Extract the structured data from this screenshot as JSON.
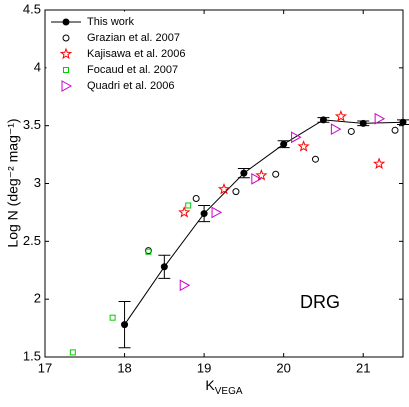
{
  "chart_data": {
    "type": "scatter",
    "xlabel": "K",
    "xlabel_sub": "VEGA",
    "ylabel": "Log N (deg⁻² mag⁻¹)",
    "annotation": "DRG",
    "xlim": [
      17,
      21.5
    ],
    "ylim": [
      1.5,
      4.5
    ],
    "xticks": [
      17,
      18,
      19,
      20,
      21
    ],
    "yticks": [
      1.5,
      2,
      2.5,
      3,
      3.5,
      4,
      4.5
    ],
    "legend": "upper left",
    "series": [
      {
        "name": "This work",
        "color": "#000000",
        "marker": "dot",
        "line": true,
        "x": [
          18,
          18.5,
          19,
          19.5,
          20,
          20.5,
          21,
          21.5
        ],
        "values": [
          1.78,
          2.28,
          2.74,
          3.09,
          3.34,
          3.55,
          3.52,
          3.53
        ],
        "errors": [
          0.2,
          0.1,
          0.07,
          0.04,
          0.03,
          0.02,
          0.02,
          0.02
        ]
      },
      {
        "name": "Grazian et al. 2007",
        "color": "#000000",
        "marker": "circle",
        "x": [
          18.3,
          18.9,
          19.4,
          19.9,
          20.4,
          20.85,
          21.4
        ],
        "values": [
          2.42,
          2.87,
          2.93,
          3.08,
          3.21,
          3.45,
          3.46
        ]
      },
      {
        "name": "Kajisawa et al. 2006",
        "color": "#ff0000",
        "marker": "star",
        "x": [
          18.75,
          19.25,
          19.72,
          20.25,
          20.72,
          21.2
        ],
        "values": [
          2.75,
          2.95,
          3.07,
          3.32,
          3.58,
          3.17
        ]
      },
      {
        "name": "Focaud et al. 2007",
        "color": "#00cc00",
        "marker": "square",
        "x": [
          17.35,
          17.85,
          18.3,
          18.8
        ],
        "values": [
          1.54,
          1.84,
          2.41,
          2.81
        ]
      },
      {
        "name": "Quadri et al. 2006",
        "color": "#cc00cc",
        "marker": "triangle",
        "x": [
          18.75,
          19.15,
          19.65,
          20.15,
          20.65,
          21.2
        ],
        "values": [
          2.12,
          2.75,
          3.04,
          3.4,
          3.47,
          3.56
        ]
      }
    ]
  }
}
